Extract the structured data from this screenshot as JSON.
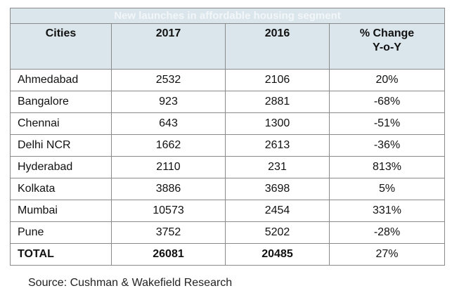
{
  "chart_data": {
    "type": "table",
    "title": "New launches in affordable housing segment",
    "columns": [
      "Cities",
      "2017",
      "2016",
      "% Change Y-o-Y"
    ],
    "header_pct_line1": "% Change",
    "header_pct_line2": "Y-o-Y",
    "rows": [
      {
        "city": "Ahmedabad",
        "y2017": "2532",
        "y2016": "2106",
        "change": "20%"
      },
      {
        "city": "Bangalore",
        "y2017": "923",
        "y2016": "2881",
        "change": "-68%"
      },
      {
        "city": "Chennai",
        "y2017": "643",
        "y2016": "1300",
        "change": "-51%"
      },
      {
        "city": "Delhi NCR",
        "y2017": "1662",
        "y2016": "2613",
        "change": "-36%"
      },
      {
        "city": "Hyderabad",
        "y2017": "2110",
        "y2016": "231",
        "change": "813%"
      },
      {
        "city": "Kolkata",
        "y2017": "3886",
        "y2016": "3698",
        "change": "5%"
      },
      {
        "city": "Mumbai",
        "y2017": "10573",
        "y2016": "2454",
        "change": "331%"
      },
      {
        "city": "Pune",
        "y2017": "3752",
        "y2016": "5202",
        "change": "-28%"
      }
    ],
    "total": {
      "city": "TOTAL",
      "y2017": "26081",
      "y2016": "20485",
      "change": "27%"
    }
  },
  "source": "Source: Cushman & Wakefield Research",
  "colors": {
    "header_bg": "#dbe6ec",
    "border": "#8a8a8a"
  }
}
